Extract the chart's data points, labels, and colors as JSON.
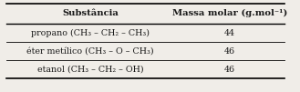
{
  "title_col1": "Substância",
  "title_col2": "Massa molar (g.mol⁻¹)",
  "rows": [
    [
      "propano (CH₃ – CH₂ – CH₃)",
      "44"
    ],
    [
      "éter metílico (CH₃ – O – CH₃)",
      "46"
    ],
    [
      "etanol (CH₃ – CH₂ – OH)",
      "46"
    ]
  ],
  "bg_color": "#f0ede8",
  "text_color": "#1a1a1a",
  "header_fontsize": 7.2,
  "row_fontsize": 6.8,
  "figsize": [
    3.29,
    1.01
  ],
  "dpi": 100
}
